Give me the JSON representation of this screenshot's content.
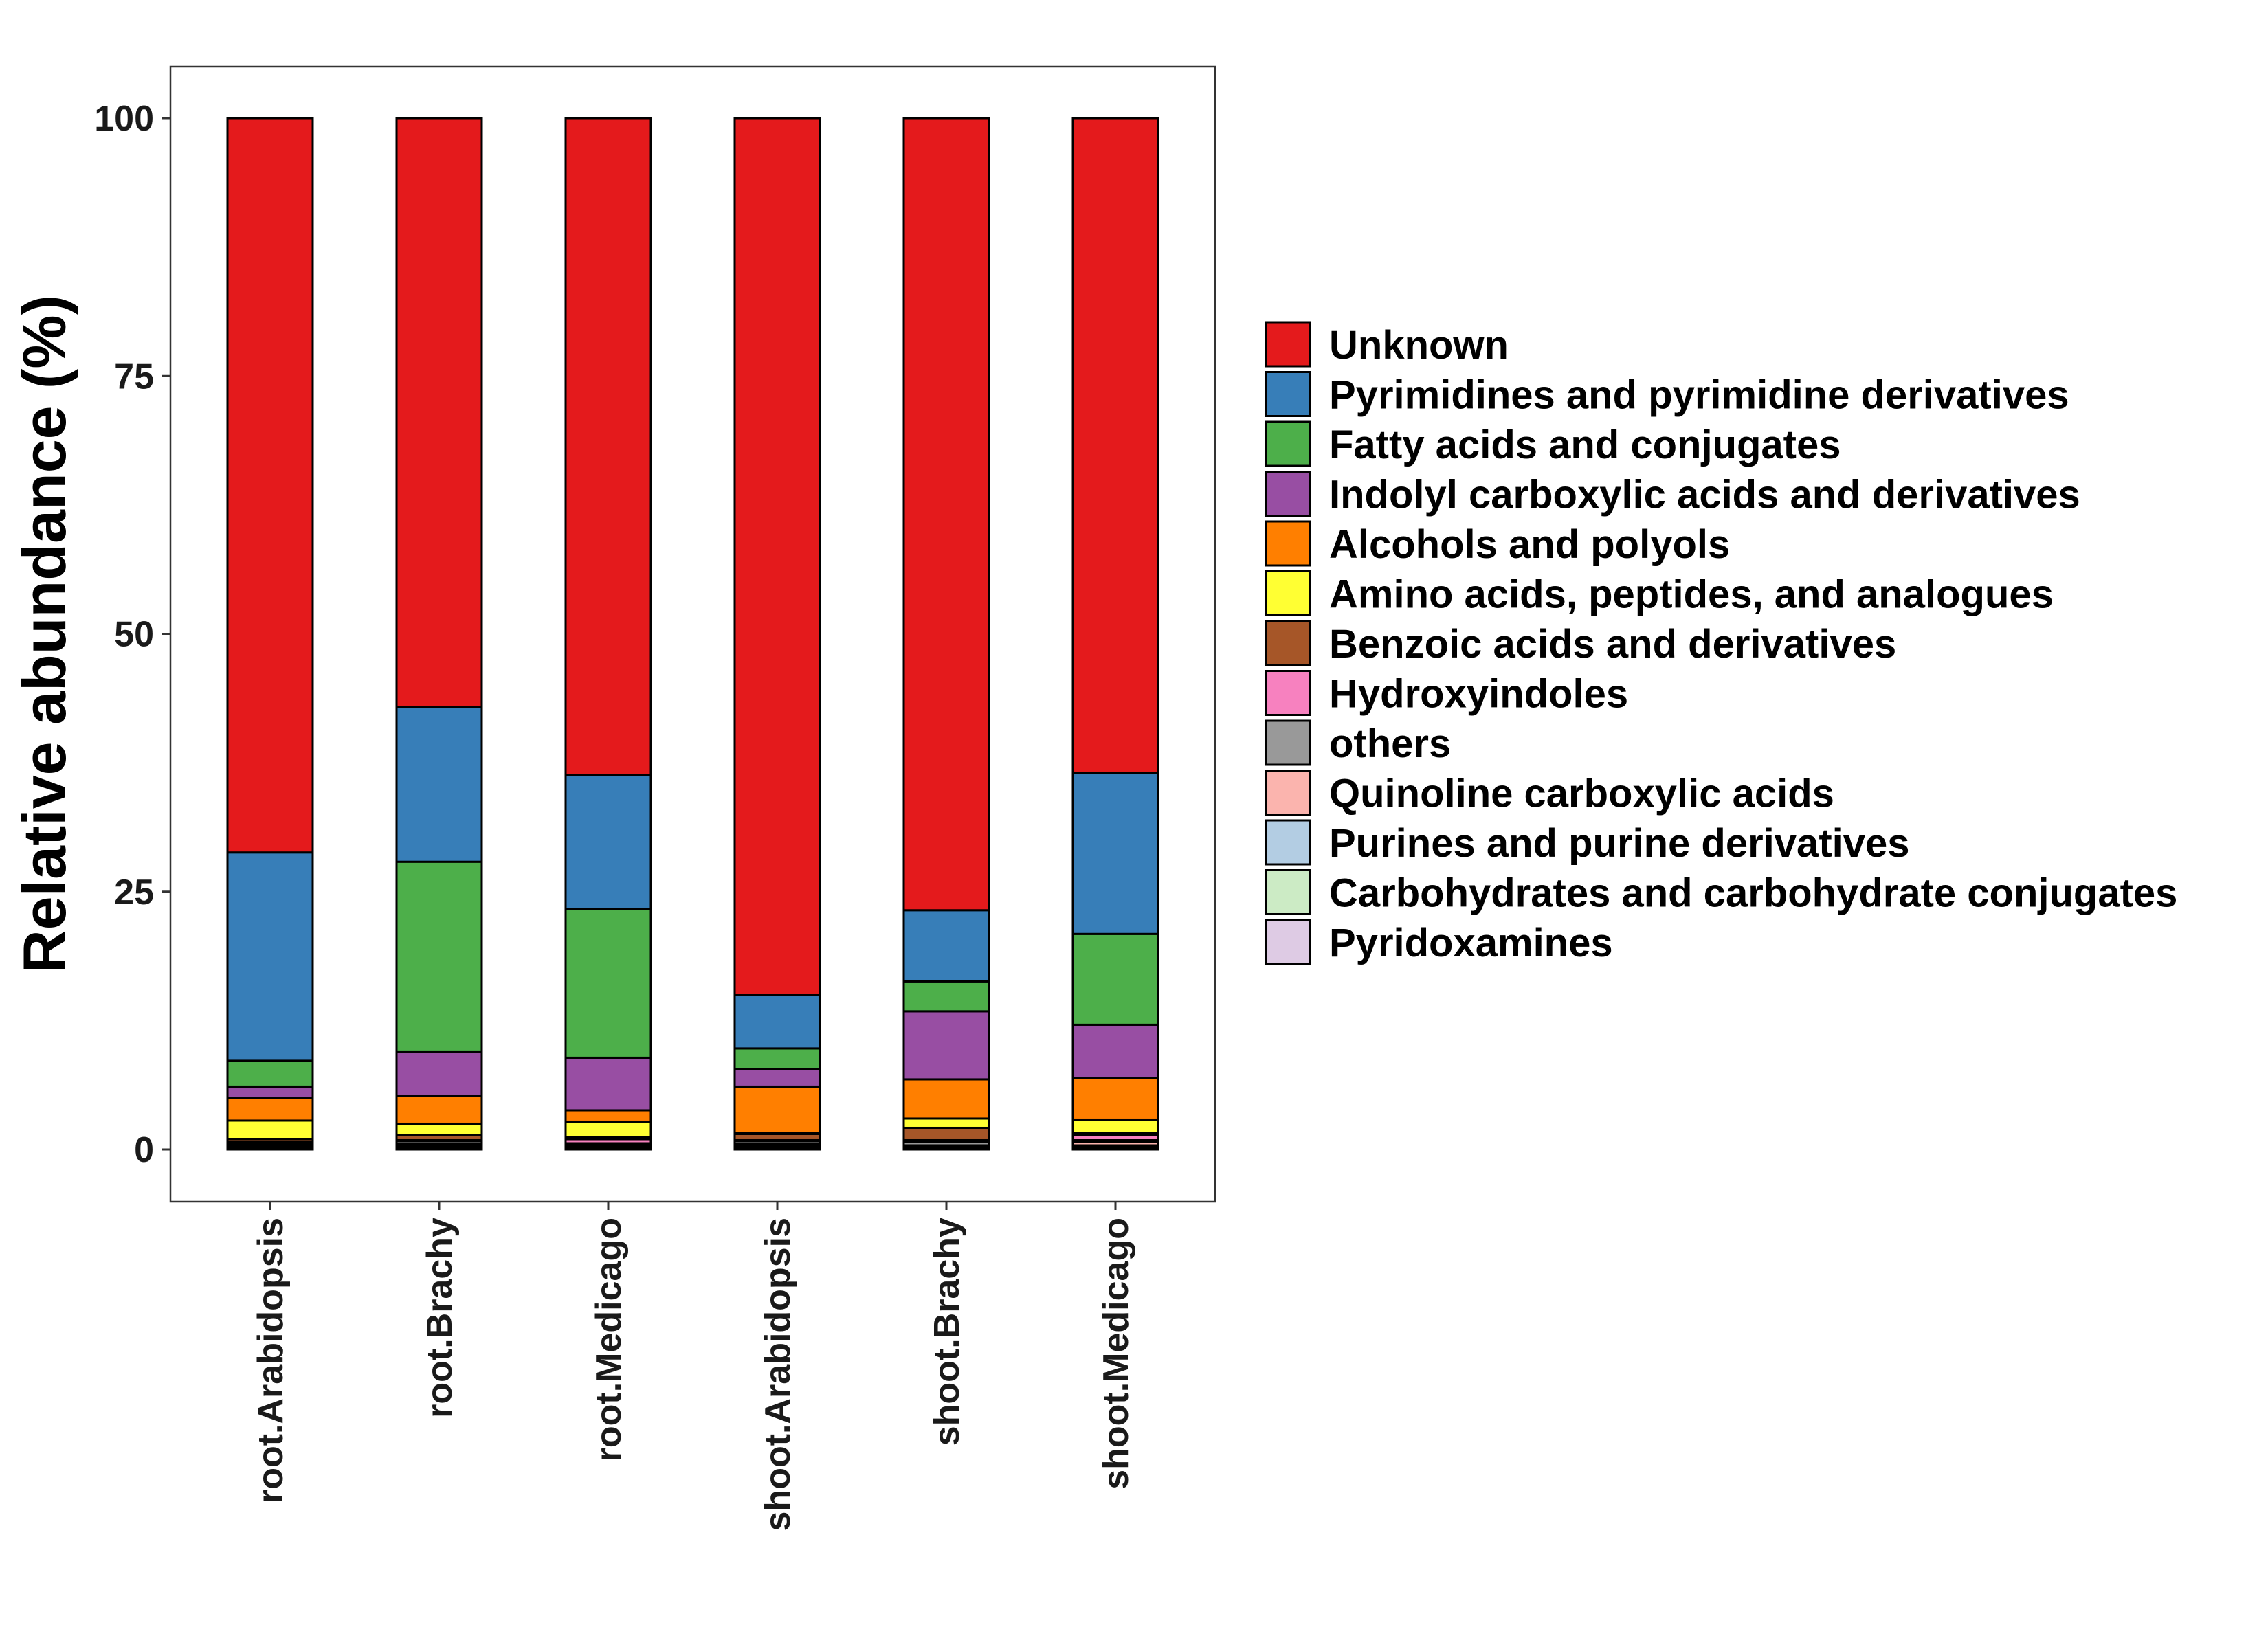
{
  "chart_data": {
    "type": "bar",
    "stacked": true,
    "title": "",
    "xlabel": "",
    "ylabel": "Relative abundance (%)",
    "ylim": [
      0,
      100
    ],
    "yticks": [
      0,
      25,
      50,
      75,
      100
    ],
    "grid": false,
    "legend_position": "right",
    "categories": [
      "root.Arabidopsis",
      "root.Brachy",
      "root.Medicago",
      "shoot.Arabidopsis",
      "shoot.Brachy",
      "shoot.Medicago"
    ],
    "series": [
      {
        "name": "Pyridoxamines",
        "color": "#DECBE4",
        "values": [
          0.1,
          0.1,
          0.1,
          0.1,
          0.1,
          0.1
        ]
      },
      {
        "name": "Carbohydrates and carbohydrate conjugates",
        "color": "#CCEBC5",
        "values": [
          0.1,
          0.1,
          0.1,
          0.1,
          0.1,
          0.1
        ]
      },
      {
        "name": "Purines and purine derivatives",
        "color": "#B3CDE3",
        "values": [
          0.1,
          0.2,
          0.1,
          0.2,
          0.1,
          0.2
        ]
      },
      {
        "name": "Quinoline carboxylic acids",
        "color": "#FBB4AE",
        "values": [
          0.1,
          0.1,
          0.2,
          0.1,
          0.1,
          0.3
        ]
      },
      {
        "name": "others",
        "color": "#999999",
        "values": [
          0.2,
          0.3,
          0.1,
          0.3,
          0.3,
          0.2
        ]
      },
      {
        "name": "Hydroxyindoles",
        "color": "#F781BF",
        "values": [
          0.1,
          0.1,
          0.4,
          0.1,
          0.2,
          0.5
        ]
      },
      {
        "name": "Benzoic acids and derivatives",
        "color": "#A65628",
        "values": [
          0.3,
          0.5,
          0.2,
          0.6,
          1.2,
          0.2
        ]
      },
      {
        "name": "Amino acids, peptides, and analogues",
        "color": "#FFFF33",
        "values": [
          1.8,
          1.1,
          1.5,
          0.1,
          0.9,
          1.3
        ]
      },
      {
        "name": "Alcohols and polyols",
        "color": "#FF7F00",
        "values": [
          2.2,
          2.7,
          1.1,
          4.5,
          3.8,
          4.0
        ]
      },
      {
        "name": "Indolyl carboxylic acids and derivatives",
        "color": "#984EA3",
        "values": [
          1.1,
          4.3,
          5.1,
          1.7,
          6.6,
          5.2
        ]
      },
      {
        "name": "Fatty acids and conjugates",
        "color": "#4DAF4A",
        "values": [
          2.5,
          18.4,
          14.4,
          2.0,
          2.9,
          8.8
        ]
      },
      {
        "name": "Pyrimidines and pyrimidine derivatives",
        "color": "#377EB8",
        "values": [
          20.2,
          15.0,
          13.0,
          5.2,
          6.9,
          15.6
        ]
      },
      {
        "name": "Unknown",
        "color": "#E41A1C",
        "values": [
          71.2,
          57.1,
          63.7,
          85.0,
          76.8,
          63.5
        ]
      }
    ],
    "legend_order": [
      "Unknown",
      "Pyrimidines and pyrimidine derivatives",
      "Fatty acids and conjugates",
      "Indolyl carboxylic acids and derivatives",
      "Alcohols and polyols",
      "Amino acids, peptides, and analogues",
      "Benzoic acids and derivatives",
      "Hydroxyindoles",
      "others",
      "Quinoline carboxylic acids",
      "Purines and purine derivatives",
      "Carbohydrates and carbohydrate conjugates",
      "Pyridoxamines"
    ]
  }
}
